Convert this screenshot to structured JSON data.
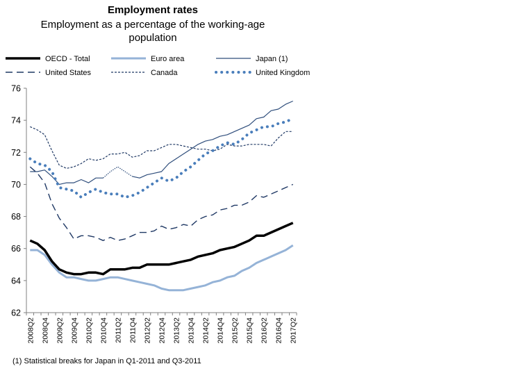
{
  "chart_data": {
    "type": "line",
    "title": "Employment rates",
    "subtitle": "Employment as a percentage of the working-age population",
    "xlabel": "",
    "ylabel": "",
    "ylim": [
      62,
      76
    ],
    "yticks": [
      62,
      64,
      66,
      68,
      70,
      72,
      74,
      76
    ],
    "grid": false,
    "legend_position": "top",
    "categories": [
      "2008Q2",
      "2008Q3",
      "2008Q4",
      "2009Q1",
      "2009Q2",
      "2009Q3",
      "2009Q4",
      "2010Q1",
      "2010Q2",
      "2010Q3",
      "2010Q4",
      "2011Q1",
      "2011Q2",
      "2011Q3",
      "2011Q4",
      "2012Q1",
      "2012Q2",
      "2012Q3",
      "2012Q4",
      "2013Q1",
      "2013Q2",
      "2013Q3",
      "2013Q4",
      "2014Q1",
      "2014Q2",
      "2014Q3",
      "2014Q4",
      "2015Q1",
      "2015Q2",
      "2015Q3",
      "2015Q4",
      "2016Q1",
      "2016Q2",
      "2016Q3",
      "2016Q4",
      "2017Q1",
      "2017Q2"
    ],
    "tick_labels": [
      "2008Q2",
      "2008Q4",
      "2009Q2",
      "2009Q4",
      "2010Q2",
      "2010Q4",
      "2011Q2",
      "2011Q4",
      "2012Q2",
      "2012Q4",
      "2013Q2",
      "2013Q4",
      "2014Q2",
      "2014Q4",
      "2015Q2",
      "2015Q4",
      "2016Q2",
      "2016Q4",
      "2017Q2"
    ],
    "series": [
      {
        "name": "OECD - Total",
        "color": "#000000",
        "style": "solid-thick",
        "values": [
          66.5,
          66.3,
          65.9,
          65.2,
          64.7,
          64.5,
          64.4,
          64.4,
          64.5,
          64.5,
          64.4,
          64.7,
          64.7,
          64.7,
          64.8,
          64.8,
          65.0,
          65.0,
          65.0,
          65.0,
          65.1,
          65.2,
          65.3,
          65.5,
          65.6,
          65.7,
          65.9,
          66.0,
          66.1,
          66.3,
          66.5,
          66.8,
          66.8,
          67.0,
          67.2,
          67.4,
          67.6
        ]
      },
      {
        "name": "Euro area",
        "color": "#95b3d7",
        "style": "solid-thick",
        "values": [
          65.9,
          65.9,
          65.6,
          65.0,
          64.5,
          64.2,
          64.2,
          64.1,
          64.0,
          64.0,
          64.1,
          64.2,
          64.2,
          64.1,
          64.0,
          63.9,
          63.8,
          63.7,
          63.5,
          63.4,
          63.4,
          63.4,
          63.5,
          63.6,
          63.7,
          63.9,
          64.0,
          64.2,
          64.3,
          64.6,
          64.8,
          65.1,
          65.3,
          65.5,
          65.7,
          65.9,
          66.2
        ]
      },
      {
        "name": "Japan (1)",
        "color": "#2e4d7b",
        "style": "solid-thin",
        "values": [
          70.8,
          70.8,
          70.9,
          70.5,
          70.0,
          70.1,
          70.1,
          70.3,
          70.1,
          70.4,
          70.4,
          null,
          null,
          null,
          70.5,
          70.4,
          70.6,
          70.7,
          70.8,
          71.3,
          71.6,
          71.9,
          72.2,
          72.5,
          72.7,
          72.8,
          73.0,
          73.1,
          73.3,
          73.5,
          73.7,
          74.1,
          74.2,
          74.6,
          74.7,
          75.0,
          75.2
        ]
      },
      {
        "name": "United States",
        "color": "#1f3864",
        "style": "dashed-long",
        "values": [
          71.1,
          70.7,
          70.1,
          68.8,
          67.9,
          67.3,
          66.6,
          66.8,
          66.8,
          66.7,
          66.5,
          66.7,
          66.5,
          66.6,
          66.8,
          67.0,
          67.0,
          67.1,
          67.4,
          67.2,
          67.3,
          67.5,
          67.4,
          67.8,
          68.0,
          68.1,
          68.4,
          68.5,
          68.7,
          68.7,
          68.9,
          69.3,
          69.2,
          69.4,
          69.6,
          69.8,
          70.0
        ]
      },
      {
        "name": "Canada",
        "color": "#1f3864",
        "style": "dashed-short",
        "values": [
          73.6,
          73.4,
          73.1,
          72.1,
          71.2,
          71.0,
          71.1,
          71.3,
          71.6,
          71.5,
          71.6,
          71.9,
          71.9,
          72.0,
          71.7,
          71.8,
          72.1,
          72.1,
          72.3,
          72.5,
          72.5,
          72.4,
          72.3,
          72.2,
          72.2,
          72.1,
          72.2,
          72.5,
          72.4,
          72.4,
          72.5,
          72.5,
          72.5,
          72.4,
          72.9,
          73.3,
          73.3
        ]
      },
      {
        "name": "United Kingdom",
        "color": "#4a7ebb",
        "style": "dotted-thick",
        "values": [
          71.6,
          71.3,
          71.2,
          70.8,
          69.8,
          69.7,
          69.6,
          69.2,
          69.5,
          69.7,
          69.5,
          69.4,
          69.4,
          69.2,
          69.3,
          69.5,
          69.8,
          70.1,
          70.4,
          70.2,
          70.4,
          70.8,
          71.1,
          71.5,
          71.9,
          72.1,
          72.4,
          72.6,
          72.5,
          72.8,
          73.2,
          73.4,
          73.6,
          73.6,
          73.8,
          73.9,
          74.1
        ]
      }
    ],
    "annotations": [
      {
        "series": "Japan (1)",
        "note": "thin dotted segment across the statistical breaks",
        "values": [
          70.4,
          70.8,
          71.1,
          70.8,
          70.5
        ]
      }
    ]
  },
  "footnote": "(1) Statistical breaks for Japan in Q1-2011 and Q3-2011"
}
